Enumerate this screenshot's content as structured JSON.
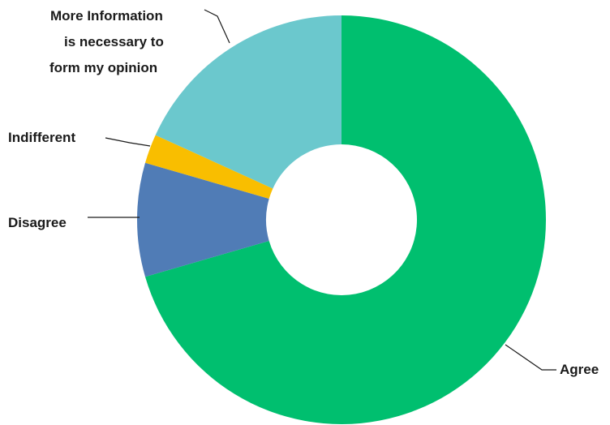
{
  "chart_data": {
    "type": "pie",
    "donut": true,
    "categories": [
      "Agree",
      "Disagree",
      "Indifferent",
      "More Information is necessary to form my opinion"
    ],
    "label_lines": [
      [
        "Agree"
      ],
      [
        "Disagree"
      ],
      [
        "Indifferent"
      ],
      [
        "More Information",
        "is necessary to",
        "form my opinion"
      ]
    ],
    "values": [
      70.5,
      9.0,
      2.3,
      18.2
    ],
    "colors": [
      "#00bf6f",
      "#507cb6",
      "#f9be00",
      "#6bc8cd"
    ],
    "title": "",
    "legend": "none"
  }
}
